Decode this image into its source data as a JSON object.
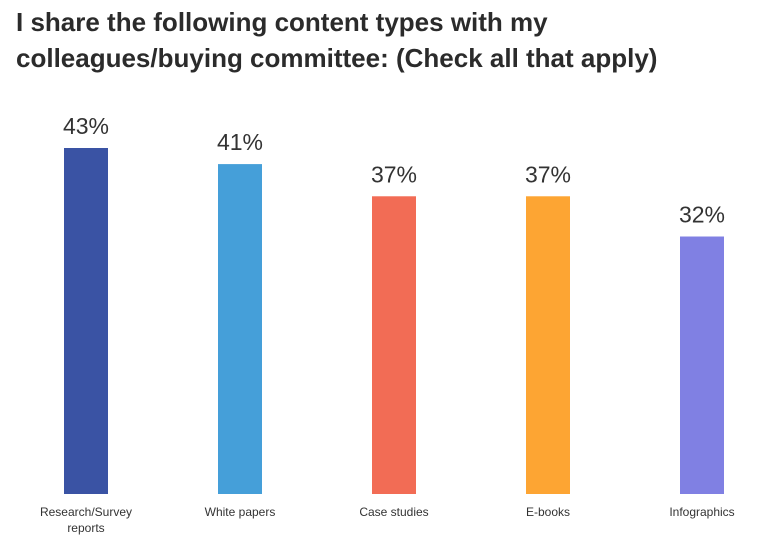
{
  "chart_data": {
    "type": "bar",
    "title": "I share the following content types with my colleagues/buying committee: (Check all that apply)",
    "categories": [
      "Research/Survey reports",
      "White papers",
      "Case studies",
      "E-books",
      "Infographics"
    ],
    "category_label_lines": [
      [
        "Research/Survey",
        "reports"
      ],
      [
        "White papers"
      ],
      [
        "Case studies"
      ],
      [
        "E-books"
      ],
      [
        "Infographics"
      ]
    ],
    "values": [
      43,
      41,
      37,
      37,
      32
    ],
    "value_labels": [
      "43%",
      "41%",
      "37%",
      "37%",
      "32%"
    ],
    "colors": [
      "#3a53a4",
      "#459fd9",
      "#f26c55",
      "#fda533",
      "#8080e3"
    ],
    "ylim": [
      0,
      43
    ],
    "xlabel": "",
    "ylabel": "",
    "grid": false,
    "legend": "none"
  }
}
